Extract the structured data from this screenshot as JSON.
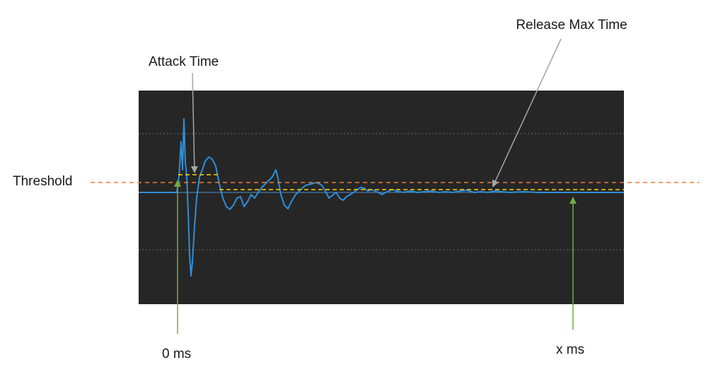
{
  "annotations": {
    "release_max_time": "Release Max Time",
    "attack_time": "Attack Time",
    "threshold": "Threshold",
    "start_time": "0 ms",
    "end_time": "x ms"
  }
}
